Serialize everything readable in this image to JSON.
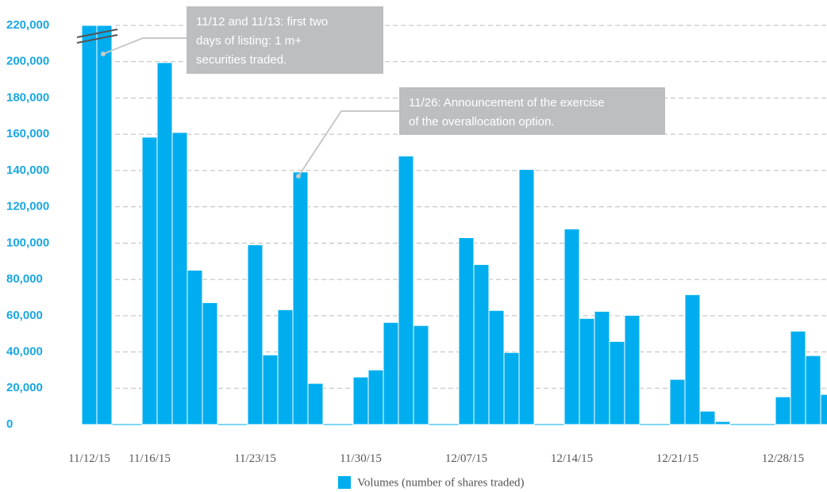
{
  "chart_data": {
    "type": "bar",
    "categories": [
      "11/12/15",
      null,
      null,
      null,
      "11/16/15",
      null,
      null,
      null,
      null,
      null,
      null,
      "11/23/15",
      null,
      null,
      null,
      null,
      null,
      null,
      "11/30/15",
      null,
      null,
      null,
      null,
      null,
      null,
      "12/07/15",
      null,
      null,
      null,
      null,
      null,
      null,
      "12/14/15",
      null,
      null,
      null,
      null,
      null,
      null,
      "12/21/15",
      null,
      null,
      null,
      null,
      null,
      null,
      "12/28/15",
      null,
      null,
      null
    ],
    "series": [
      {
        "name": "Volumes (number of shares traded)",
        "color": "#00aeef",
        "values": [
          220000,
          220000,
          null,
          null,
          158400,
          199500,
          161000,
          85100,
          67200,
          null,
          null,
          99100,
          38400,
          63300,
          139200,
          22700,
          null,
          null,
          26200,
          30100,
          56300,
          148000,
          54600,
          null,
          null,
          103000,
          88200,
          62900,
          39700,
          140600,
          null,
          null,
          107800,
          58500,
          62400,
          45800,
          60200,
          null,
          null,
          24900,
          71600,
          7400,
          1700,
          null,
          null,
          null,
          15300,
          51500,
          38000,
          16600
        ]
      }
    ],
    "ylim": [
      0,
      220000
    ],
    "yticks": [
      0,
      {
        "value": 20000,
        "label": "20,000"
      },
      {
        "value": 40000,
        "label": "40,000"
      },
      {
        "value": 60000,
        "label": "60,000"
      },
      {
        "value": 80000,
        "label": "80,000"
      },
      {
        "value": 100000,
        "label": "100,000"
      },
      {
        "value": 120000,
        "label": "120,000"
      },
      {
        "value": 140000,
        "label": "140,000"
      },
      {
        "value": 160000,
        "label": "160,000"
      },
      {
        "value": 180000,
        "label": "180,000"
      },
      {
        "value": 200000,
        "label": "200,000"
      },
      {
        "value": 220000,
        "label": "220,000"
      }
    ],
    "grid": true,
    "legend": "bottom",
    "annotations": [
      {
        "lines": [
          "11/12 and 11/13: first two",
          "days of listing: 1 m+",
          "securities traded."
        ]
      },
      {
        "lines": [
          "11/26: Announcement of the exercise",
          "of the overallocation option."
        ]
      }
    ]
  }
}
